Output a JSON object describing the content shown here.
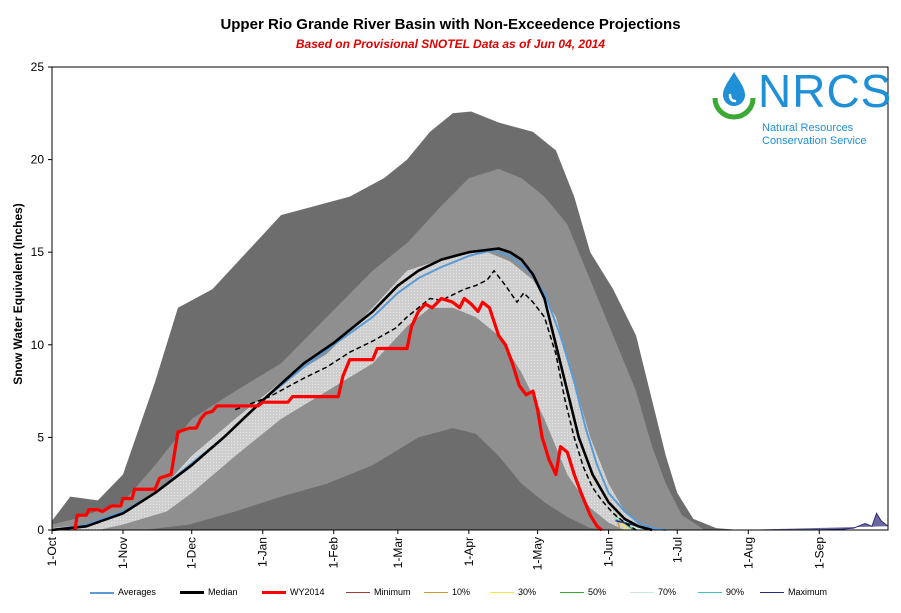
{
  "chart_data": {
    "type": "area",
    "title": "Upper Rio Grande River Basin with Non-Exceedence Projections",
    "subtitle": "Based on Provisional SNOTEL Data as of Jun 04, 2014",
    "ylabel": "Snow Water Equivalent (Inches)",
    "xlabel": "",
    "ylim": [
      0,
      25
    ],
    "yticks": [
      0,
      5,
      10,
      15,
      20,
      25
    ],
    "x_unit": "days since 1-Oct",
    "xlim": [
      0,
      365
    ],
    "xticks": [
      {
        "label": "1-Oct",
        "day": 0
      },
      {
        "label": "1-Nov",
        "day": 31
      },
      {
        "label": "1-Dec",
        "day": 61
      },
      {
        "label": "1-Jan",
        "day": 92
      },
      {
        "label": "1-Feb",
        "day": 123
      },
      {
        "label": "1-Mar",
        "day": 151
      },
      {
        "label": "1-Apr",
        "day": 182
      },
      {
        "label": "1-May",
        "day": 212
      },
      {
        "label": "1-Jun",
        "day": 243
      },
      {
        "label": "1-Jul",
        "day": 273
      },
      {
        "label": "1-Aug",
        "day": 304
      },
      {
        "label": "1-Sep",
        "day": 335
      }
    ],
    "bands": [
      {
        "name": "Max-Min range",
        "color": "#6d6d6d",
        "upper": [
          [
            0,
            0.5
          ],
          [
            8,
            1.8
          ],
          [
            20,
            1.6
          ],
          [
            31,
            3
          ],
          [
            45,
            8
          ],
          [
            55,
            12
          ],
          [
            70,
            13
          ],
          [
            85,
            15
          ],
          [
            100,
            17
          ],
          [
            115,
            17.5
          ],
          [
            130,
            18
          ],
          [
            145,
            19
          ],
          [
            155,
            20
          ],
          [
            165,
            21.5
          ],
          [
            175,
            22.5
          ],
          [
            183,
            22.6
          ],
          [
            195,
            22
          ],
          [
            210,
            21.5
          ],
          [
            220,
            20.5
          ],
          [
            228,
            18
          ],
          [
            235,
            15
          ],
          [
            245,
            13
          ],
          [
            255,
            10.5
          ],
          [
            262,
            7
          ],
          [
            268,
            4
          ],
          [
            273,
            2
          ],
          [
            280,
            0.6
          ],
          [
            290,
            0.1
          ],
          [
            300,
            0
          ]
        ],
        "lower": [
          [
            0,
            0
          ],
          [
            300,
            0
          ]
        ]
      },
      {
        "name": "10-90 range",
        "color": "#8f8f8f",
        "upper": [
          [
            0,
            0.3
          ],
          [
            10,
            0.6
          ],
          [
            31,
            1.5
          ],
          [
            45,
            3.5
          ],
          [
            61,
            6
          ],
          [
            80,
            7.5
          ],
          [
            100,
            9
          ],
          [
            120,
            11.5
          ],
          [
            140,
            14
          ],
          [
            155,
            15.5
          ],
          [
            170,
            17.5
          ],
          [
            182,
            19
          ],
          [
            195,
            19.5
          ],
          [
            205,
            19
          ],
          [
            215,
            18
          ],
          [
            225,
            16.5
          ],
          [
            235,
            13.5
          ],
          [
            245,
            10.5
          ],
          [
            255,
            7.5
          ],
          [
            262,
            4.5
          ],
          [
            268,
            2.5
          ],
          [
            275,
            0.8
          ],
          [
            285,
            0
          ]
        ],
        "lower": [
          [
            0,
            0
          ],
          [
            40,
            0
          ],
          [
            60,
            0.3
          ],
          [
            80,
            1
          ],
          [
            100,
            1.8
          ],
          [
            120,
            2.5
          ],
          [
            140,
            3.5
          ],
          [
            160,
            5
          ],
          [
            175,
            5.5
          ],
          [
            185,
            5.2
          ],
          [
            195,
            4
          ],
          [
            205,
            2.5
          ],
          [
            215,
            1.5
          ],
          [
            225,
            0.7
          ],
          [
            235,
            0.1
          ],
          [
            245,
            0
          ]
        ]
      },
      {
        "name": "30-70 range",
        "color": "#bdbdbd",
        "upper": [
          [
            0,
            0.1
          ],
          [
            20,
            0.4
          ],
          [
            31,
            0.8
          ],
          [
            50,
            2.5
          ],
          [
            61,
            4
          ],
          [
            80,
            6
          ],
          [
            100,
            8
          ],
          [
            120,
            9.5
          ],
          [
            140,
            12
          ],
          [
            155,
            14
          ],
          [
            170,
            14.6
          ],
          [
            180,
            15
          ],
          [
            190,
            15
          ],
          [
            200,
            14.5
          ],
          [
            210,
            13.5
          ],
          [
            220,
            11.5
          ],
          [
            228,
            8
          ],
          [
            235,
            5
          ],
          [
            243,
            2.5
          ],
          [
            250,
            1
          ],
          [
            256,
            0.3
          ],
          [
            262,
            0
          ]
        ],
        "lower": [
          [
            0,
            0
          ],
          [
            20,
            0
          ],
          [
            31,
            0.3
          ],
          [
            50,
            1
          ],
          [
            61,
            2
          ],
          [
            80,
            4
          ],
          [
            100,
            6
          ],
          [
            120,
            7.5
          ],
          [
            140,
            9
          ],
          [
            155,
            11
          ],
          [
            165,
            12
          ],
          [
            175,
            12
          ],
          [
            185,
            11.5
          ],
          [
            195,
            10.5
          ],
          [
            205,
            8.5
          ],
          [
            215,
            6
          ],
          [
            225,
            3
          ],
          [
            235,
            1.2
          ],
          [
            243,
            0.4
          ],
          [
            250,
            0
          ]
        ]
      }
    ],
    "series": [
      {
        "name": "Averages",
        "color": "#5b9bd5",
        "width": 2,
        "points": [
          [
            0,
            0
          ],
          [
            15,
            0.3
          ],
          [
            31,
            1
          ],
          [
            45,
            2
          ],
          [
            61,
            3.6
          ],
          [
            75,
            5
          ],
          [
            92,
            7
          ],
          [
            110,
            8.8
          ],
          [
            123,
            10
          ],
          [
            140,
            11.5
          ],
          [
            151,
            12.8
          ],
          [
            160,
            13.6
          ],
          [
            170,
            14.2
          ],
          [
            182,
            14.8
          ],
          [
            192,
            15.1
          ],
          [
            200,
            14.8
          ],
          [
            208,
            14
          ],
          [
            215,
            12.8
          ],
          [
            222,
            10.5
          ],
          [
            228,
            8
          ],
          [
            233,
            5.5
          ],
          [
            238,
            3.5
          ],
          [
            243,
            2
          ],
          [
            250,
            1
          ],
          [
            256,
            0.4
          ],
          [
            262,
            0.1
          ],
          [
            268,
            0
          ]
        ]
      },
      {
        "name": "Median",
        "color": "#000000",
        "width": 2.6,
        "points": [
          [
            0,
            0
          ],
          [
            15,
            0.2
          ],
          [
            31,
            0.9
          ],
          [
            45,
            2
          ],
          [
            61,
            3.5
          ],
          [
            75,
            5
          ],
          [
            92,
            7
          ],
          [
            110,
            9
          ],
          [
            123,
            10.1
          ],
          [
            140,
            11.8
          ],
          [
            151,
            13.2
          ],
          [
            160,
            14
          ],
          [
            170,
            14.6
          ],
          [
            182,
            15
          ],
          [
            195,
            15.2
          ],
          [
            200,
            15
          ],
          [
            205,
            14.6
          ],
          [
            210,
            13.8
          ],
          [
            215,
            12.5
          ],
          [
            220,
            10
          ],
          [
            225,
            7.5
          ],
          [
            230,
            5
          ],
          [
            236,
            3
          ],
          [
            243,
            1.5
          ],
          [
            250,
            0.6
          ],
          [
            256,
            0.2
          ],
          [
            262,
            0
          ]
        ]
      },
      {
        "name": "Current dashed",
        "color": "#000000",
        "width": 1.5,
        "dash": "5,3",
        "points": [
          [
            80,
            6.5
          ],
          [
            95,
            7.2
          ],
          [
            110,
            8.2
          ],
          [
            120,
            8.8
          ],
          [
            125,
            9.2
          ],
          [
            130,
            9.6
          ],
          [
            140,
            10.2
          ],
          [
            150,
            10.9
          ],
          [
            155,
            11.5
          ],
          [
            160,
            12
          ],
          [
            165,
            12.5
          ],
          [
            170,
            12.4
          ],
          [
            175,
            12.7
          ],
          [
            180,
            13
          ],
          [
            185,
            13.2
          ],
          [
            190,
            13.5
          ],
          [
            193,
            14
          ],
          [
            198,
            13.2
          ],
          [
            203,
            12.3
          ],
          [
            206,
            12.8
          ],
          [
            210,
            12.3
          ],
          [
            215,
            11.5
          ],
          [
            220,
            9.5
          ],
          [
            224,
            7
          ],
          [
            228,
            5
          ],
          [
            232,
            3.4
          ],
          [
            236,
            2.3
          ],
          [
            240,
            1.6
          ],
          [
            245,
            0.9
          ],
          [
            250,
            0.4
          ],
          [
            255,
            0
          ]
        ]
      },
      {
        "name": "WY2014",
        "color": "#ff0000",
        "width": 3.2,
        "points": [
          [
            10,
            0
          ],
          [
            11,
            0.8
          ],
          [
            15,
            0.8
          ],
          [
            16,
            1.1
          ],
          [
            20,
            1.1
          ],
          [
            22,
            1
          ],
          [
            26,
            1.3
          ],
          [
            30,
            1.3
          ],
          [
            31,
            1.7
          ],
          [
            35,
            1.7
          ],
          [
            36,
            2.2
          ],
          [
            45,
            2.2
          ],
          [
            47,
            2.8
          ],
          [
            52,
            3
          ],
          [
            55,
            5.3
          ],
          [
            60,
            5.5
          ],
          [
            63,
            5.5
          ],
          [
            65,
            6
          ],
          [
            67,
            6.3
          ],
          [
            70,
            6.4
          ],
          [
            72,
            6.7
          ],
          [
            90,
            6.7
          ],
          [
            92,
            6.9
          ],
          [
            103,
            6.9
          ],
          [
            105,
            7.2
          ],
          [
            125,
            7.2
          ],
          [
            127,
            8.3
          ],
          [
            130,
            9.2
          ],
          [
            140,
            9.2
          ],
          [
            142,
            9.8
          ],
          [
            155,
            9.8
          ],
          [
            157,
            11
          ],
          [
            160,
            11.8
          ],
          [
            163,
            12.2
          ],
          [
            166,
            12
          ],
          [
            170,
            12.5
          ],
          [
            175,
            12.3
          ],
          [
            178,
            12
          ],
          [
            180,
            12.5
          ],
          [
            183,
            12.2
          ],
          [
            186,
            11.8
          ],
          [
            188,
            12.3
          ],
          [
            191,
            12
          ],
          [
            195,
            10.5
          ],
          [
            198,
            10
          ],
          [
            201,
            9
          ],
          [
            204,
            7.8
          ],
          [
            207,
            7.3
          ],
          [
            210,
            7.5
          ],
          [
            212,
            6.5
          ],
          [
            214,
            5
          ],
          [
            217,
            3.8
          ],
          [
            220,
            3
          ],
          [
            222,
            4.5
          ],
          [
            225,
            4.2
          ],
          [
            228,
            3
          ],
          [
            231,
            2
          ],
          [
            235,
            0.8
          ],
          [
            238,
            0.2
          ],
          [
            240,
            0
          ]
        ]
      }
    ],
    "projections": [
      {
        "name": "10%",
        "color": "#c99a2e"
      },
      {
        "name": "30%",
        "color": "#f5e642"
      },
      {
        "name": "50%",
        "color": "#3aaa35"
      },
      {
        "name": "70%",
        "color": "#d6efe9"
      },
      {
        "name": "90%",
        "color": "#3cc3c3"
      },
      {
        "name": "Maximum",
        "color": "#2b2b7a"
      }
    ],
    "late_season": [
      [
        300,
        0
      ],
      [
        335,
        0
      ],
      [
        345,
        0.05
      ],
      [
        350,
        0.1
      ],
      [
        355,
        0.35
      ],
      [
        358,
        0.2
      ],
      [
        360,
        0.9
      ],
      [
        362,
        0.5
      ],
      [
        365,
        0.2
      ]
    ],
    "legend": [
      {
        "label": "Averages",
        "color": "#5b9bd5",
        "width": 2
      },
      {
        "label": "Median",
        "color": "#000000",
        "width": 3
      },
      {
        "label": "WY2014",
        "color": "#ff0000",
        "width": 3
      },
      {
        "label": "Minimum",
        "color": "#a33b3b",
        "width": 1
      },
      {
        "label": "10%",
        "color": "#c99a2e",
        "width": 1
      },
      {
        "label": "30%",
        "color": "#f5e642",
        "width": 1
      },
      {
        "label": "50%",
        "color": "#3aaa35",
        "width": 1
      },
      {
        "label": "70%",
        "color": "#c8e8e0",
        "width": 1
      },
      {
        "label": "90%",
        "color": "#3cc3c3",
        "width": 1
      },
      {
        "label": "Maximum",
        "color": "#2b2b7a",
        "width": 1
      }
    ]
  },
  "logo": {
    "acronym": "NRCS",
    "line1": "Natural Resources",
    "line2": "Conservation Service"
  }
}
